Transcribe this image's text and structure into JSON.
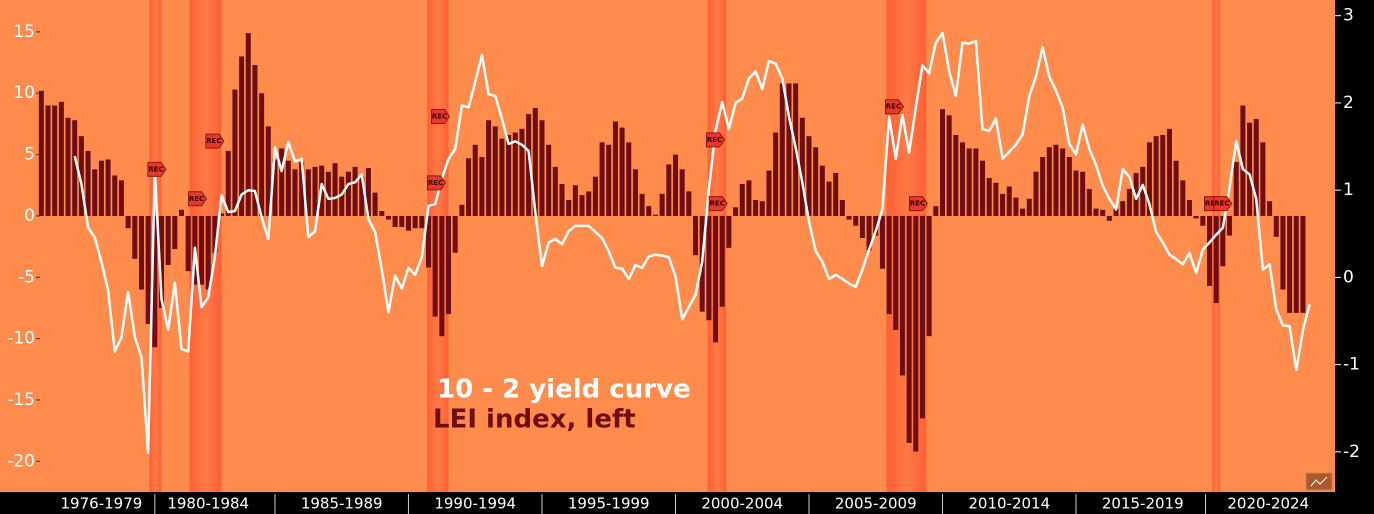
{
  "chart_data": {
    "type": "combo",
    "x": [
      1976.25,
      1976.5,
      1976.75,
      1977,
      1977.25,
      1977.5,
      1977.75,
      1978,
      1978.25,
      1978.5,
      1978.75,
      1979,
      1979.25,
      1979.5,
      1979.75,
      1980,
      1980.25,
      1980.5,
      1980.75,
      1981,
      1981.25,
      1981.5,
      1981.75,
      1982,
      1982.25,
      1982.5,
      1982.75,
      1983,
      1983.25,
      1983.5,
      1983.75,
      1984,
      1984.25,
      1984.5,
      1984.75,
      1985,
      1985.25,
      1985.5,
      1985.75,
      1986,
      1986.25,
      1986.5,
      1986.75,
      1987,
      1987.25,
      1987.5,
      1987.75,
      1988,
      1988.25,
      1988.5,
      1988.75,
      1989,
      1989.25,
      1989.5,
      1989.75,
      1990,
      1990.25,
      1990.5,
      1990.75,
      1991,
      1991.25,
      1991.5,
      1991.75,
      1992,
      1992.25,
      1992.5,
      1992.75,
      1993,
      1993.25,
      1993.5,
      1993.75,
      1994,
      1994.25,
      1994.5,
      1994.75,
      1995,
      1995.25,
      1995.5,
      1995.75,
      1996,
      1996.25,
      1996.5,
      1996.75,
      1997,
      1997.25,
      1997.5,
      1997.75,
      1998,
      1998.25,
      1998.5,
      1998.75,
      1999,
      1999.25,
      1999.5,
      1999.75,
      2000,
      2000.25,
      2000.5,
      2000.75,
      2001,
      2001.25,
      2001.5,
      2001.75,
      2002,
      2002.25,
      2002.5,
      2002.75,
      2003,
      2003.25,
      2003.5,
      2003.75,
      2004,
      2004.25,
      2004.5,
      2004.75,
      2005,
      2005.25,
      2005.5,
      2005.75,
      2006,
      2006.25,
      2006.5,
      2006.75,
      2007,
      2007.25,
      2007.5,
      2007.75,
      2008,
      2008.25,
      2008.5,
      2008.75,
      2009,
      2009.25,
      2009.5,
      2009.75,
      2010,
      2010.25,
      2010.5,
      2010.75,
      2011,
      2011.25,
      2011.5,
      2011.75,
      2012,
      2012.25,
      2012.5,
      2012.75,
      2013,
      2013.25,
      2013.5,
      2013.75,
      2014,
      2014.25,
      2014.5,
      2014.75,
      2015,
      2015.25,
      2015.5,
      2015.75,
      2016,
      2016.25,
      2016.5,
      2016.75,
      2017,
      2017.25,
      2017.5,
      2017.75,
      2018,
      2018.25,
      2018.5,
      2018.75,
      2019,
      2019.25,
      2019.5,
      2019.75,
      2020,
      2020.25,
      2020.5,
      2020.75,
      2021,
      2021.25,
      2021.5,
      2021.75,
      2022,
      2022.25,
      2022.5,
      2022.75,
      2023,
      2023.25,
      2023.5,
      2023.75
    ],
    "series": [
      {
        "name": "10 - 2 yield curve",
        "type": "line",
        "axis": "y2",
        "color": "#ffffff",
        "values": [
          null,
          null,
          null,
          null,
          null,
          1.39,
          1.07,
          0.57,
          0.46,
          0.18,
          -0.15,
          -0.85,
          -0.69,
          -0.17,
          -0.68,
          -0.92,
          -2.01,
          1.22,
          -0.25,
          -0.6,
          -0.06,
          -0.82,
          -0.85,
          0.34,
          -0.34,
          -0.23,
          0.24,
          0.94,
          0.75,
          0.76,
          0.95,
          1.0,
          0.99,
          0.69,
          0.44,
          1.49,
          1.22,
          1.55,
          1.33,
          1.36,
          0.46,
          0.53,
          1.07,
          0.9,
          0.91,
          0.95,
          1.07,
          1.09,
          1.18,
          0.67,
          0.52,
          0.09,
          -0.4,
          0.02,
          -0.13,
          0.11,
          0.03,
          0.23,
          0.82,
          0.84,
          1.13,
          1.36,
          1.47,
          1.97,
          1.95,
          2.24,
          2.55,
          2.1,
          2.08,
          1.82,
          1.53,
          1.56,
          1.52,
          1.45,
          0.75,
          0.13,
          0.4,
          0.44,
          0.38,
          0.53,
          0.59,
          0.59,
          0.59,
          0.52,
          0.45,
          0.3,
          0.11,
          0.1,
          -0.02,
          0.14,
          0.11,
          0.24,
          0.26,
          0.25,
          0.23,
          0.01,
          -0.48,
          -0.34,
          -0.2,
          0.18,
          1.01,
          1.68,
          2.01,
          1.7,
          2.0,
          2.05,
          2.28,
          2.36,
          2.16,
          2.48,
          2.45,
          2.28,
          1.84,
          1.49,
          1.09,
          0.64,
          0.3,
          0.18,
          -0.02,
          0.03,
          -0.02,
          -0.07,
          -0.11,
          0.09,
          0.32,
          0.53,
          0.78,
          1.84,
          1.36,
          1.86,
          1.43,
          1.95,
          2.43,
          2.34,
          2.69,
          2.8,
          2.36,
          2.08,
          2.69,
          2.68,
          2.71,
          1.7,
          1.68,
          1.82,
          1.36,
          1.44,
          1.52,
          1.64,
          2.08,
          2.3,
          2.64,
          2.3,
          2.14,
          1.95,
          1.53,
          1.41,
          1.75,
          1.47,
          1.29,
          1.05,
          0.9,
          0.78,
          1.24,
          1.15,
          0.9,
          1.06,
          0.84,
          0.52,
          0.4,
          0.26,
          0.21,
          0.15,
          0.28,
          0.05,
          0.32,
          0.4,
          0.49,
          0.57,
          1.03,
          1.56,
          1.24,
          1.18,
          0.9,
          0.09,
          0.15,
          -0.37,
          -0.55,
          -0.56,
          -1.06,
          -0.6,
          -0.31
        ]
      },
      {
        "name": "LEI index, left",
        "type": "bar",
        "axis": "y",
        "color": "#6e0d12",
        "values": [
          10.2,
          9.0,
          9.0,
          9.3,
          8.0,
          7.8,
          6.5,
          5.3,
          3.8,
          4.5,
          4.6,
          3.3,
          2.9,
          -1.0,
          -3.5,
          -6.0,
          -8.8,
          -10.7,
          -7.5,
          -4.0,
          -2.7,
          0.5,
          -4.5,
          -5.6,
          -5.6,
          -6.0,
          -3.0,
          0.2,
          5.3,
          10.3,
          13.0,
          14.9,
          12.3,
          10.0,
          7.3,
          4.6,
          5.5,
          4.5,
          3.8,
          4.4,
          3.8,
          4.0,
          4.1,
          3.6,
          4.3,
          3.2,
          3.6,
          4.0,
          3.2,
          3.9,
          1.9,
          0.4,
          -0.3,
          -0.9,
          -0.9,
          -1.2,
          -1.0,
          -1.0,
          -4.2,
          -8.2,
          -9.8,
          -8.0,
          -3.0,
          0.9,
          4.7,
          5.8,
          4.8,
          7.8,
          7.3,
          6.3,
          6.6,
          6.8,
          7.1,
          8.3,
          8.8,
          7.8,
          5.8,
          4.0,
          2.6,
          1.3,
          2.5,
          1.7,
          2.0,
          3.2,
          6.0,
          5.8,
          7.7,
          7.2,
          6.0,
          3.8,
          1.8,
          0.8,
          0.1,
          1.8,
          4.2,
          5.0,
          3.8,
          2.0,
          -3.2,
          -7.8,
          -8.5,
          -10.3,
          -7.4,
          -2.6,
          0.7,
          2.6,
          2.9,
          1.3,
          1.2,
          3.7,
          6.8,
          10.8,
          10.8,
          10.8,
          8.0,
          6.5,
          5.6,
          4.1,
          2.8,
          3.5,
          1.3,
          -0.3,
          -0.8,
          -1.8,
          -2.8,
          -1.6,
          -4.3,
          -8.0,
          -9.3,
          -13.0,
          -18.5,
          -19.2,
          -16.5,
          -9.8,
          0.8,
          8.7,
          8.2,
          6.6,
          6.0,
          5.5,
          5.5,
          4.5,
          3.1,
          2.7,
          1.8,
          2.4,
          1.5,
          0.6,
          1.4,
          3.6,
          4.8,
          5.6,
          5.8,
          5.5,
          4.8,
          3.7,
          3.6,
          2.2,
          0.6,
          0.5,
          -0.4,
          0.6,
          1.2,
          2.2,
          3.5,
          4.0,
          6.0,
          6.5,
          6.6,
          7.1,
          4.5,
          2.9,
          1.3,
          -0.2,
          -0.8,
          -5.7,
          -7.1,
          -4.1,
          -1.6,
          4.4,
          9.0,
          7.6,
          7.9,
          6.0,
          1.2,
          -1.7,
          -6.0,
          -7.9,
          -7.9,
          -7.9,
          null
        ]
      }
    ],
    "recessions": [
      [
        1980.3,
        1980.75
      ],
      [
        1981.8,
        1983.0
      ],
      [
        1990.7,
        1991.5
      ],
      [
        2001.2,
        2001.9
      ],
      [
        2007.9,
        2009.4
      ],
      [
        2020.1,
        2020.4
      ]
    ],
    "annotations": [
      {
        "label": "REC",
        "x": 1980.58,
        "y": 3.8
      },
      {
        "label": "REC",
        "x": 1982.1,
        "y": 1.4
      },
      {
        "label": "REC",
        "x": 1982.75,
        "y": 6.1
      },
      {
        "label": "REC",
        "x": 1991.2,
        "y": 8.1
      },
      {
        "label": "REC",
        "x": 1991.05,
        "y": 2.7
      },
      {
        "label": "REC",
        "x": 2001.5,
        "y": 6.2
      },
      {
        "label": "REC",
        "x": 2001.6,
        "y": 1.0
      },
      {
        "label": "REC",
        "x": 2008.2,
        "y": 8.9
      },
      {
        "label": "REC",
        "x": 2009.1,
        "y": 1.0
      },
      {
        "label": "REC",
        "x": 2020.15,
        "y": 1.0
      },
      {
        "label": "REC",
        "x": 2020.5,
        "y": 1.0
      }
    ],
    "xlim": [
      1976.2,
      2024.7
    ],
    "xticks": [
      {
        "value": 1978.5,
        "label": "1976-1979"
      },
      {
        "value": 1982.5,
        "label": "1980-1984"
      },
      {
        "value": 1987.5,
        "label": "1985-1989"
      },
      {
        "value": 1992.5,
        "label": "1990-1994"
      },
      {
        "value": 1997.5,
        "label": "1995-1999"
      },
      {
        "value": 2002.5,
        "label": "2000-2004"
      },
      {
        "value": 2007.5,
        "label": "2005-2009"
      },
      {
        "value": 2012.5,
        "label": "2010-2014"
      },
      {
        "value": 2017.5,
        "label": "2015-2019"
      },
      {
        "value": 2022.2,
        "label": "2020-2024"
      }
    ],
    "ylim": [
      -22.5,
      17.6
    ],
    "yticks": [
      15,
      10,
      5,
      0,
      -5,
      -10,
      -15,
      -20
    ],
    "y2lim": [
      -2.46,
      3.18
    ],
    "y2ticks": [
      3,
      2,
      1,
      0,
      -1,
      -2
    ],
    "background": "#ff8c4c",
    "recession_color": "#ff6a3e"
  }
}
